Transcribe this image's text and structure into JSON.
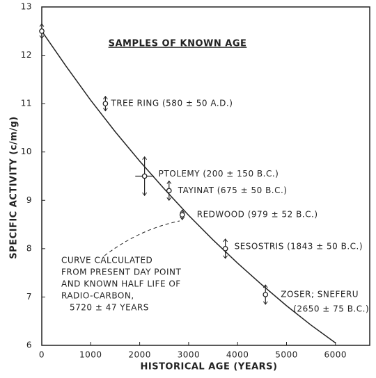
{
  "chart_data": {
    "type": "scatter",
    "title": "SAMPLES OF KNOWN AGE",
    "x_label": "HISTORICAL AGE (YEARS)",
    "y_label": "SPECIFIC ACTIVITY (c/m/g)",
    "xlim": [
      0,
      6700
    ],
    "ylim": [
      6,
      13
    ],
    "xticks": [
      0,
      1000,
      2000,
      3000,
      4000,
      5000,
      6000
    ],
    "yticks": [
      6,
      7,
      8,
      9,
      10,
      11,
      12,
      13
    ],
    "color": "#222222",
    "series": [
      {
        "name": "Samples",
        "x": [
          0,
          1300,
          2100,
          2600,
          2870,
          3750,
          4570
        ],
        "values": [
          12.5,
          11.0,
          9.5,
          9.2,
          8.7,
          8.0,
          7.05
        ],
        "errors": [
          0.15,
          0.15,
          0.4,
          0.2,
          0.1,
          0.2,
          0.2
        ],
        "xerr": [
          null,
          null,
          190,
          null,
          null,
          null,
          null
        ],
        "labels": [
          null,
          [
            "TREE RING (580 ± 50 A.D.)"
          ],
          [
            "PTOLEMY (200 ± 150 B.C.)"
          ],
          [
            "TAYINAT (675 ± 50 B.C.)"
          ],
          [
            "REDWOOD (979 ± 52 B.C.)"
          ],
          [
            "SESOSTRIS (1843 ± 50 B.C.)"
          ],
          [
            "ZOSER; SNEFERU",
            "(2650 ± 75 B.C.)"
          ]
        ]
      }
    ],
    "curve": {
      "x": [
        0,
        500,
        1000,
        1500,
        2000,
        2500,
        3000,
        3500,
        4000,
        4500,
        5000,
        5500,
        6000
      ],
      "values": [
        12.5,
        11.77,
        11.07,
        10.42,
        9.81,
        9.24,
        8.69,
        8.18,
        7.7,
        7.25,
        6.82,
        6.42,
        6.05
      ]
    },
    "annotation": [
      "CURVE CALCULATED",
      "FROM PRESENT DAY POINT",
      "AND KNOWN HALF LIFE OF",
      "RADIO-CARBON,",
      "5720 ± 47 YEARS"
    ]
  }
}
